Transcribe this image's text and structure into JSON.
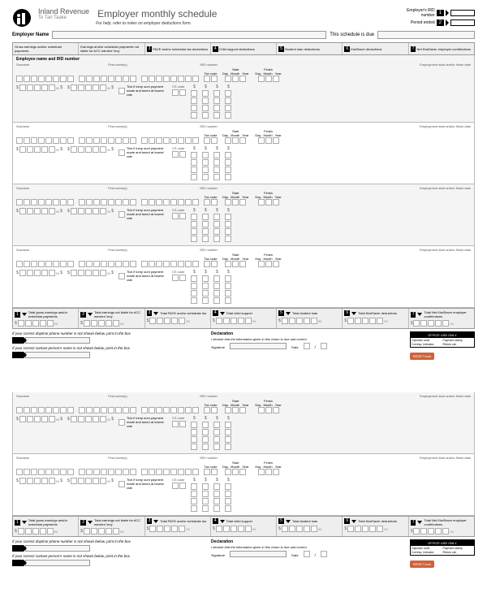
{
  "brand": "Inland Revenue",
  "brand_sub": "Te Tari Taake",
  "title": "Employer monthly schedule",
  "subtitle": "For help, refer to notes on employer deductions form.",
  "top": {
    "ird_label": "Employer's IRD number",
    "period_label": "Period ended",
    "badge1": "1",
    "badge2": "2"
  },
  "employer_name_label": "Employer Name",
  "schedule_due_label": "This schedule is due",
  "cols": [
    "Gross earnings and/or schedular payments",
    "Earnings and/or schedular payments not liable for ACC earners' levy",
    "PAYE and/or schedular tax deductions",
    "Child support deductions",
    "Student loan deductions",
    "KiwiSaver deductions",
    "Net KiwiSaver employer contributions"
  ],
  "col_nums": [
    "",
    "",
    "3",
    "4",
    "5",
    "6",
    "7"
  ],
  "emp_section_title": "Employee name and IRD number",
  "surname": "Surname",
  "firstname": "First name(s)",
  "ird": "IRD number",
  "tax_code": "Tax code",
  "start": "Start",
  "finish": "Finish",
  "day": "Day",
  "month": "Month",
  "year": "Year",
  "empdate": "Employment start and/or finish date",
  "cs_code": "CS code",
  "lump_sum": "Tick if lump sum payment made and taxed at lowest rate",
  "cents": "00",
  "totals": [
    "Total gross earnings and/or schedular payments",
    "Total earnings not liable for ACC earners' levy",
    "Total PAYE and/or schedular tax",
    "Total child support",
    "Total student loan",
    "Total KiwiSaver deductions",
    "Total Net KiwiSaver employer contributions"
  ],
  "total_nums": [
    "1",
    "2",
    "3",
    "4",
    "5",
    "6",
    "7"
  ],
  "foot_phone": "If your correct daytime phone number is not shown below, print in the box",
  "foot_contact": "If your correct contact person's name is not shown below, print in the box",
  "decl_title": "Declaration",
  "decl_text": "I declare that the information given in this return is true and correct.",
  "signature": "Signature",
  "date": "Date",
  "office": "OFFICE USE ONLY",
  "office_rows": [
    "Operator code",
    "Payment stamp",
    "Corresp. indicator",
    "Return cat."
  ],
  "reset": "RESET form",
  "slash": "/"
}
